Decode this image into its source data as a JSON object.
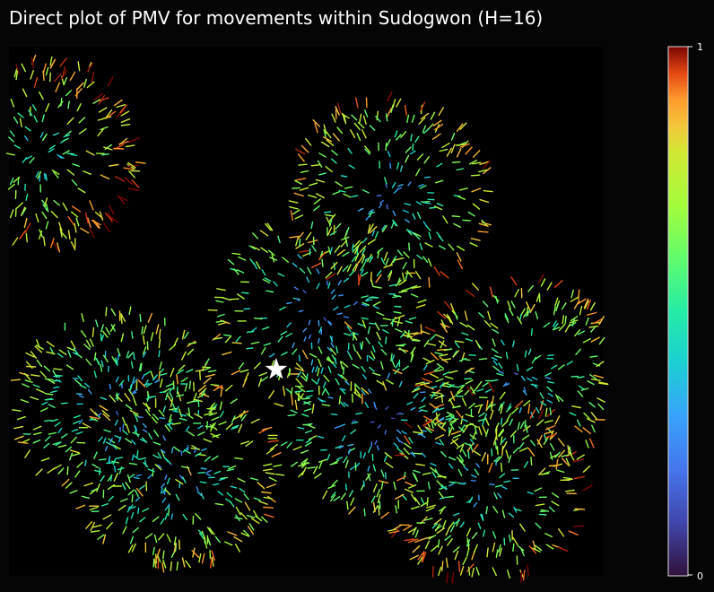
{
  "chart_data": {
    "type": "quiver",
    "title": "Direct plot of PMV for movements within Sudogwon (H=16)",
    "colorbar": {
      "min": 0,
      "max": 1,
      "tick_labels": [
        "1",
        "0"
      ],
      "colormap": "turbo"
    },
    "marker": {
      "shape": "star",
      "color": "#ffffff",
      "x": 0.45,
      "y": 0.61
    },
    "clusters": [
      {
        "region": "west-central",
        "x": 0.18,
        "y": 0.68,
        "magnitude": 0.22
      },
      {
        "region": "central-south",
        "x": 0.28,
        "y": 0.8,
        "magnitude": 0.25
      },
      {
        "region": "center",
        "x": 0.52,
        "y": 0.5,
        "magnitude": 0.2
      },
      {
        "region": "east-central",
        "x": 0.63,
        "y": 0.7,
        "magnitude": 0.18
      },
      {
        "region": "north-central",
        "x": 0.64,
        "y": 0.28,
        "magnitude": 0.3
      },
      {
        "region": "far-east",
        "x": 0.86,
        "y": 0.62,
        "magnitude": 0.3
      },
      {
        "region": "north-west",
        "x": 0.05,
        "y": 0.2,
        "magnitude": 0.4
      },
      {
        "region": "south-east",
        "x": 0.8,
        "y": 0.83,
        "magnitude": 0.35
      }
    ],
    "colors": {
      "background": "#000000",
      "page": "#050505",
      "text": "#ffffff"
    }
  }
}
